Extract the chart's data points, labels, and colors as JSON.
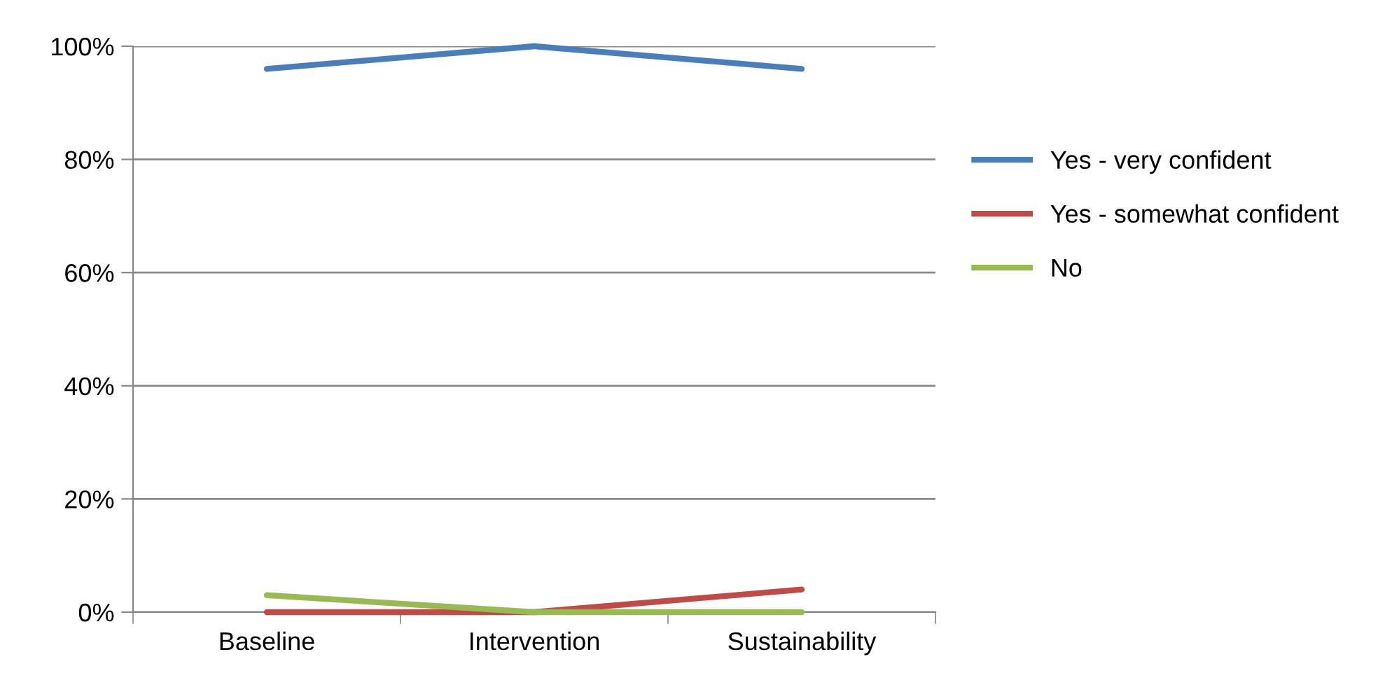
{
  "chart_data": {
    "type": "line",
    "categories": [
      "Baseline",
      "Intervention",
      "Sustainability"
    ],
    "series": [
      {
        "name": "Yes - very confident",
        "color": "#4a7ebb",
        "values": [
          96,
          100,
          96
        ]
      },
      {
        "name": "Yes - somewhat confident",
        "color": "#be4b48",
        "values": [
          0,
          0,
          4
        ]
      },
      {
        "name": "No",
        "color": "#98b954",
        "values": [
          3,
          0,
          0
        ]
      }
    ],
    "ylim": [
      0,
      100
    ],
    "yticks": [
      {
        "value": 0,
        "label": "0%"
      },
      {
        "value": 20,
        "label": "20%"
      },
      {
        "value": 40,
        "label": "40%"
      },
      {
        "value": 60,
        "label": "60%"
      },
      {
        "value": 80,
        "label": "80%"
      },
      {
        "value": 100,
        "label": "100%"
      }
    ],
    "grid": "y",
    "legend": "right",
    "marker": "none",
    "line_style": "solid"
  }
}
